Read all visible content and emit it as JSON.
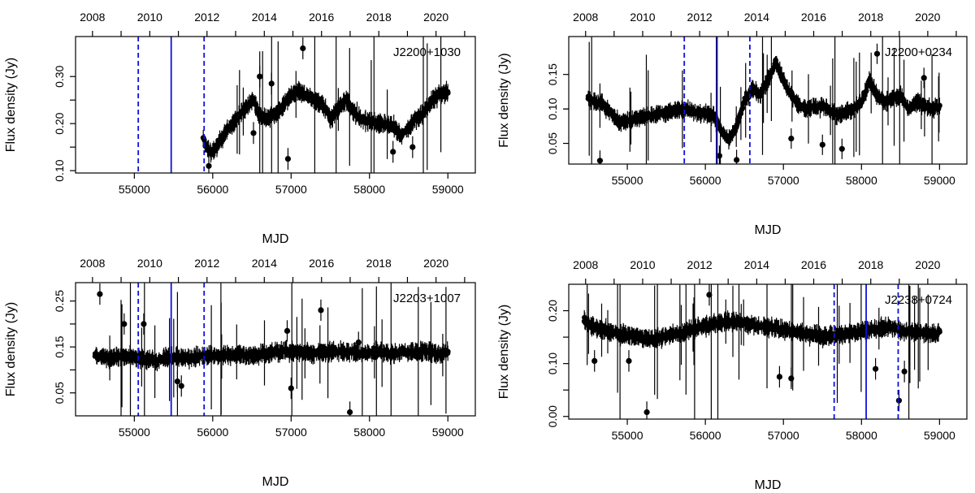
{
  "chart_data": [
    {
      "type": "scatter",
      "title": "J2200+1030",
      "xlabel": "MJD",
      "ylabel": "Flux density (Jy)",
      "xlim": [
        54250,
        59350
      ],
      "ylim": [
        0.095,
        0.385
      ],
      "x_ticks": [
        55000,
        56000,
        57000,
        58000,
        59000
      ],
      "y_ticks": [
        0.1,
        0.2,
        0.3
      ],
      "y_minor_ticks": [
        0.15,
        0.25
      ],
      "top_ticks": [
        "2008",
        "2010",
        "2012",
        "2014",
        "2016",
        "2018",
        "2020"
      ],
      "grid": false,
      "series": [
        {
          "name": "flux",
          "x": [
            55880,
            55930,
            56000,
            56100,
            56200,
            56300,
            56400,
            56500,
            56550,
            56600,
            56700,
            56800,
            56900,
            57000,
            57100,
            57200,
            57300,
            57400,
            57500,
            57600,
            57700,
            57800,
            57900,
            58000,
            58100,
            58200,
            58300,
            58400,
            58500,
            58600,
            58700,
            58800,
            58900,
            59000
          ],
          "y": [
            0.17,
            0.145,
            0.14,
            0.165,
            0.19,
            0.21,
            0.23,
            0.25,
            0.24,
            0.215,
            0.21,
            0.22,
            0.24,
            0.26,
            0.27,
            0.26,
            0.25,
            0.24,
            0.21,
            0.23,
            0.25,
            0.225,
            0.21,
            0.205,
            0.2,
            0.2,
            0.195,
            0.175,
            0.19,
            0.21,
            0.225,
            0.25,
            0.265,
            0.265
          ]
        },
        {
          "name": "outliers",
          "x": [
            55950,
            56520,
            56600,
            56960,
            57150,
            57950,
            58300,
            58550,
            56750
          ],
          "y": [
            0.11,
            0.18,
            0.3,
            0.125,
            0.36,
            0.205,
            0.14,
            0.15,
            0.285
          ]
        }
      ],
      "vlines_solid": [
        55470
      ],
      "vlines_dashed": [
        55050,
        55890
      ],
      "legend": "none"
    },
    {
      "type": "scatter",
      "title": "J2200+0234",
      "xlabel": "MJD",
      "ylabel": "Flux density (Jy)",
      "xlim": [
        54250,
        59350
      ],
      "ylim": [
        0.02,
        0.205
      ],
      "x_ticks": [
        55000,
        56000,
        57000,
        58000,
        59000
      ],
      "y_ticks": [
        0.05,
        0.1,
        0.15
      ],
      "y_minor_ticks": [
        0.1
      ],
      "top_ticks": [
        "2008",
        "2010",
        "2012",
        "2014",
        "2016",
        "2018",
        "2020"
      ],
      "grid": false,
      "series": [
        {
          "name": "flux",
          "x": [
            54500,
            54600,
            54700,
            54900,
            55100,
            55300,
            55500,
            55700,
            55900,
            56100,
            56200,
            56300,
            56400,
            56500,
            56600,
            56700,
            56800,
            56900,
            57000,
            57100,
            57200,
            57300,
            57500,
            57700,
            57900,
            58000,
            58100,
            58200,
            58300,
            58400,
            58500,
            58600,
            58700,
            58800,
            58900,
            59000
          ],
          "y": [
            0.115,
            0.11,
            0.105,
            0.08,
            0.085,
            0.09,
            0.095,
            0.1,
            0.095,
            0.09,
            0.07,
            0.055,
            0.075,
            0.11,
            0.13,
            0.12,
            0.14,
            0.17,
            0.14,
            0.12,
            0.105,
            0.1,
            0.105,
            0.09,
            0.1,
            0.11,
            0.14,
            0.12,
            0.11,
            0.115,
            0.12,
            0.1,
            0.11,
            0.105,
            0.1,
            0.105
          ]
        },
        {
          "name": "outliers",
          "x": [
            54650,
            56180,
            56400,
            57100,
            57500,
            57750,
            58200,
            58800
          ],
          "y": [
            0.025,
            0.032,
            0.026,
            0.057,
            0.048,
            0.042,
            0.18,
            0.145
          ]
        }
      ],
      "vlines_solid": [
        56150
      ],
      "vlines_dashed": [
        55730,
        56570
      ],
      "legend": "none"
    },
    {
      "type": "scatter",
      "title": "J2203+1007",
      "xlabel": "MJD",
      "ylabel": "Flux density (Jy)",
      "xlim": [
        54250,
        59350
      ],
      "ylim": [
        0.0,
        0.29
      ],
      "x_ticks": [
        55000,
        56000,
        57000,
        58000,
        59000
      ],
      "y_ticks": [
        0.05,
        0.15,
        0.25
      ],
      "y_minor_ticks": [
        0.1,
        0.2
      ],
      "top_ticks": [
        "2008",
        "2010",
        "2012",
        "2014",
        "2016",
        "2018",
        "2020"
      ],
      "grid": false,
      "series": [
        {
          "name": "flux",
          "x": [
            54500,
            54700,
            54900,
            55100,
            55300,
            55500,
            55700,
            55900,
            56100,
            56300,
            56500,
            56700,
            56900,
            57100,
            57300,
            57500,
            57700,
            57900,
            58100,
            58300,
            58500,
            58700,
            58900,
            59000
          ],
          "y": [
            0.13,
            0.125,
            0.13,
            0.125,
            0.12,
            0.13,
            0.125,
            0.13,
            0.13,
            0.135,
            0.13,
            0.135,
            0.14,
            0.14,
            0.135,
            0.14,
            0.14,
            0.135,
            0.14,
            0.135,
            0.14,
            0.14,
            0.135,
            0.14
          ]
        },
        {
          "name": "outliers",
          "x": [
            54560,
            54870,
            55120,
            55550,
            55600,
            56950,
            57000,
            57380,
            57750,
            57860
          ],
          "y": [
            0.265,
            0.2,
            0.2,
            0.075,
            0.065,
            0.185,
            0.06,
            0.23,
            0.008,
            0.16
          ]
        }
      ],
      "vlines_solid": [
        55470
      ],
      "vlines_dashed": [
        55050,
        55890
      ],
      "legend": "none"
    },
    {
      "type": "scatter",
      "title": "J2238+0724",
      "xlabel": "MJD",
      "ylabel": "Flux density (Jy)",
      "xlim": [
        54250,
        59350
      ],
      "ylim": [
        -0.005,
        0.25
      ],
      "x_ticks": [
        55000,
        56000,
        57000,
        58000,
        59000
      ],
      "y_ticks": [
        0.0,
        0.1,
        0.2
      ],
      "y_minor_ticks": [
        0.05,
        0.15
      ],
      "top_ticks": [
        "2008",
        "2010",
        "2012",
        "2014",
        "2016",
        "2018",
        "2020"
      ],
      "grid": false,
      "series": [
        {
          "name": "flux",
          "x": [
            54450,
            54550,
            54650,
            54950,
            55150,
            55350,
            55550,
            55750,
            55950,
            56150,
            56350,
            56550,
            56750,
            56950,
            57150,
            57350,
            57550,
            57750,
            57950,
            58150,
            58350,
            58550,
            58750,
            58950,
            59000
          ],
          "y": [
            0.18,
            0.17,
            0.165,
            0.155,
            0.15,
            0.145,
            0.155,
            0.16,
            0.17,
            0.175,
            0.18,
            0.175,
            0.17,
            0.165,
            0.16,
            0.155,
            0.15,
            0.155,
            0.16,
            0.165,
            0.17,
            0.16,
            0.16,
            0.155,
            0.16
          ]
        },
        {
          "name": "outliers",
          "x": [
            54580,
            55250,
            56050,
            56950,
            57100,
            58180,
            58480,
            58550,
            55020
          ],
          "y": [
            0.105,
            0.008,
            0.23,
            0.075,
            0.072,
            0.09,
            0.03,
            0.085,
            0.105
          ]
        }
      ],
      "vlines_solid": [
        58060
      ],
      "vlines_dashed": [
        57650,
        58470
      ],
      "legend": "none"
    }
  ]
}
